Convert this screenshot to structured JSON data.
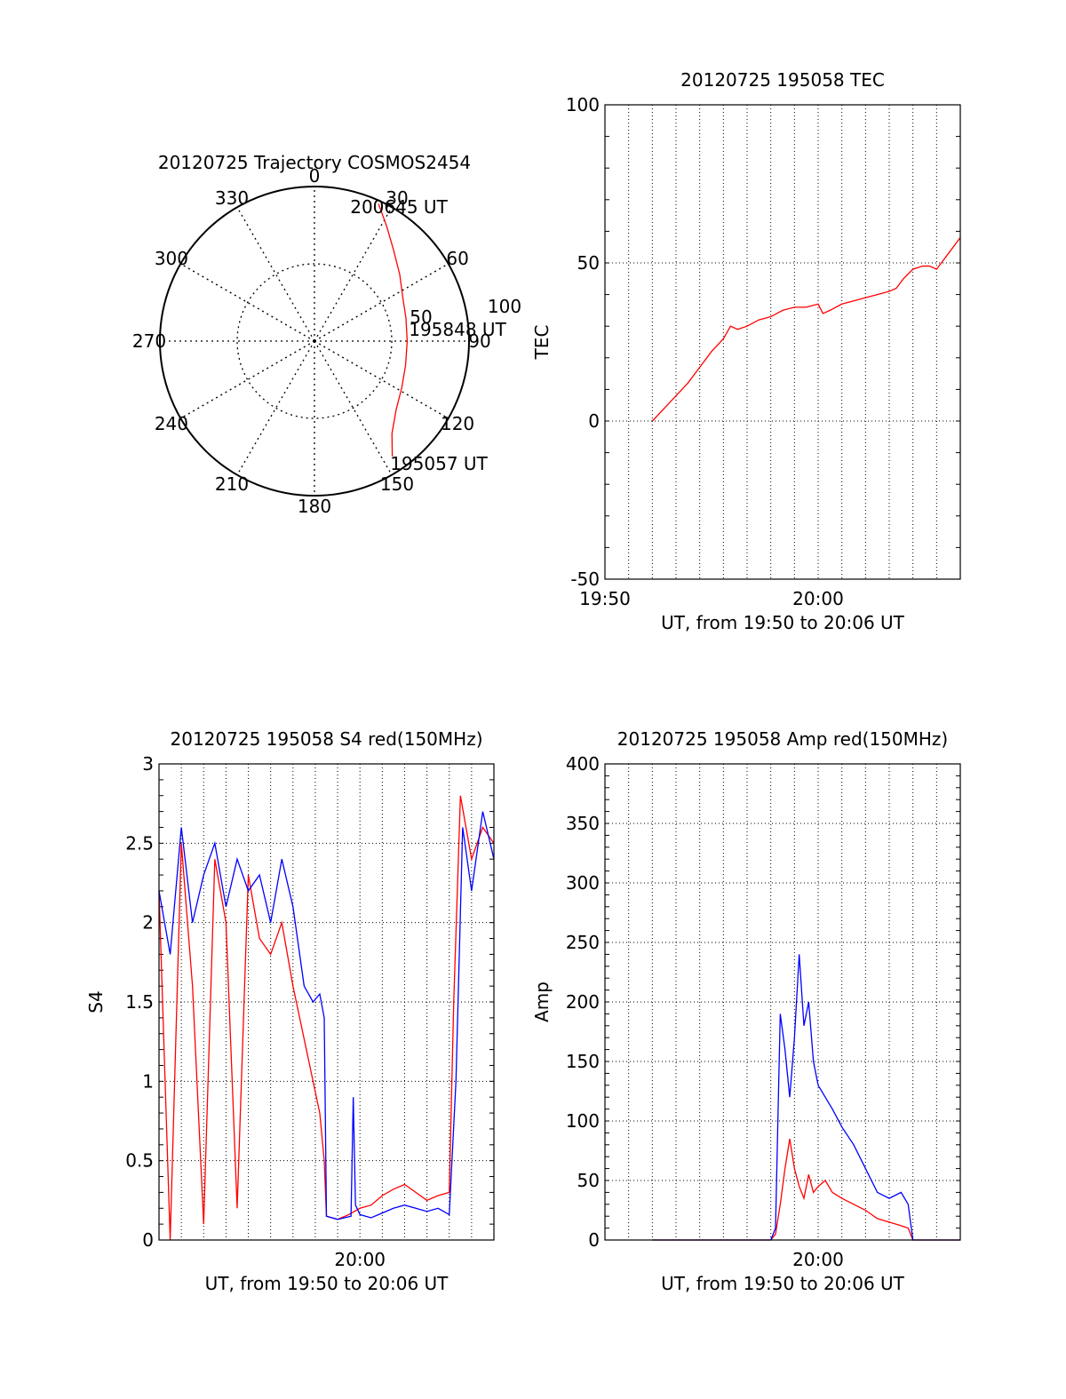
{
  "chart_data": [
    {
      "id": "trajectory",
      "type": "polar",
      "title": "20120725 Trajectory COSMOS2454",
      "angle_labels": [
        "0",
        "30",
        "60",
        "90",
        "120",
        "150",
        "180",
        "210",
        "240",
        "270",
        "300",
        "330"
      ],
      "radial_labels": [
        "50",
        "100"
      ],
      "rmax": 100,
      "grid": true,
      "start_label": "195057 UT",
      "mid_label": "195848 UT",
      "end_label": "200645 UT",
      "series": [
        {
          "color": "#ff0000",
          "azimuth": [
            146,
            140,
            130,
            118,
            105,
            90,
            76,
            63,
            52,
            41,
            32,
            25
          ],
          "radius": [
            90,
            78,
            69,
            64,
            61,
            60,
            61,
            64,
            70,
            78,
            88,
            98
          ]
        }
      ]
    },
    {
      "id": "tec",
      "type": "line",
      "title": "20120725 195058 TEC",
      "ylabel": "TEC",
      "xlabel": "UT, from 19:50 to 20:06 UT",
      "xlim": [
        0,
        15
      ],
      "ylim": [
        -50,
        100
      ],
      "xticks": [
        {
          "x": 0,
          "label": "19:50"
        },
        {
          "x": 9,
          "label": "20:00"
        }
      ],
      "yticks": [
        -50,
        0,
        50,
        100
      ],
      "grid": true,
      "series": [
        {
          "color": "#ff0000",
          "x": [
            2.0,
            2.5,
            3.0,
            3.5,
            4.0,
            4.5,
            5.0,
            5.3,
            5.6,
            6.0,
            6.5,
            7.0,
            7.5,
            8.0,
            8.5,
            9.0,
            9.2,
            9.5,
            10.0,
            10.5,
            11.0,
            11.5,
            12.0,
            12.3,
            12.6,
            13.0,
            13.4,
            13.7,
            14.0,
            14.5,
            15.0
          ],
          "y": [
            0,
            4,
            8,
            12,
            17,
            22,
            26,
            30,
            29,
            30,
            32,
            33,
            35,
            36,
            36,
            37,
            34,
            35,
            37,
            38,
            39,
            40,
            41,
            42,
            45,
            48,
            49,
            49,
            48,
            53,
            58
          ]
        }
      ]
    },
    {
      "id": "s4",
      "type": "line",
      "title": "20120725 195058 S4 red(150MHz)",
      "ylabel": "S4",
      "xlabel": "UT, from 19:50 to 20:06 UT",
      "xlim": [
        0,
        15
      ],
      "ylim": [
        0,
        3
      ],
      "xticks": [
        {
          "x": 9,
          "label": "20:00"
        }
      ],
      "yticks": [
        0,
        0.5,
        1,
        1.5,
        2,
        2.5,
        3
      ],
      "grid": true,
      "series": [
        {
          "color": "#ff0000",
          "x": [
            0,
            0.5,
            1.0,
            1.5,
            2.0,
            2.5,
            3.0,
            3.5,
            4.0,
            4.5,
            5.0,
            5.5,
            6.0,
            6.3,
            6.6,
            6.9,
            7.2,
            7.4,
            7.5,
            8.0,
            8.5,
            9.0,
            9.5,
            10.0,
            10.5,
            11.0,
            11.5,
            12.0,
            12.5,
            13.0,
            13.2,
            13.5,
            14.0,
            14.5,
            15.0
          ],
          "y": [
            2.2,
            0.0,
            2.5,
            1.6,
            0.1,
            2.4,
            2.0,
            0.2,
            2.3,
            1.9,
            1.8,
            2.0,
            1.6,
            1.4,
            1.2,
            1.0,
            0.8,
            0.5,
            0.15,
            0.13,
            0.16,
            0.2,
            0.22,
            0.28,
            0.32,
            0.35,
            0.3,
            0.25,
            0.28,
            0.3,
            1.5,
            2.8,
            2.4,
            2.6,
            2.5
          ]
        },
        {
          "color": "#0000ff",
          "x": [
            0,
            0.5,
            1.0,
            1.5,
            2.0,
            2.5,
            3.0,
            3.5,
            4.0,
            4.5,
            5.0,
            5.5,
            6.0,
            6.5,
            6.9,
            7.2,
            7.4,
            7.5,
            8.0,
            8.6,
            8.7,
            8.8,
            9.0,
            9.5,
            10.0,
            10.5,
            11.0,
            11.5,
            12.0,
            12.5,
            13.0,
            13.3,
            13.6,
            14.0,
            14.5,
            15.0
          ],
          "y": [
            2.2,
            1.8,
            2.6,
            2.0,
            2.3,
            2.5,
            2.1,
            2.4,
            2.2,
            2.3,
            2.0,
            2.4,
            2.1,
            1.6,
            1.5,
            1.55,
            1.4,
            0.15,
            0.13,
            0.15,
            0.9,
            0.22,
            0.16,
            0.14,
            0.17,
            0.2,
            0.22,
            0.2,
            0.18,
            0.2,
            0.16,
            1.0,
            2.6,
            2.2,
            2.7,
            2.4
          ]
        }
      ]
    },
    {
      "id": "amp",
      "type": "line",
      "title": "20120725 195058 Amp red(150MHz)",
      "ylabel": "Amp",
      "xlabel": "UT, from 19:50 to 20:06 UT",
      "xlim": [
        0,
        15
      ],
      "ylim": [
        0,
        400
      ],
      "xticks": [
        {
          "x": 9,
          "label": "20:00"
        }
      ],
      "yticks": [
        0,
        50,
        100,
        150,
        200,
        250,
        300,
        350,
        400
      ],
      "grid": true,
      "series": [
        {
          "color": "#ff0000",
          "x": [
            2.0,
            4.0,
            6.0,
            7.0,
            7.2,
            7.4,
            7.6,
            7.8,
            8.0,
            8.2,
            8.4,
            8.6,
            8.8,
            9.0,
            9.3,
            9.6,
            10.0,
            10.5,
            11.0,
            11.5,
            12.0,
            12.5,
            12.8,
            13.0,
            15.0
          ],
          "y": [
            0,
            0,
            0,
            0,
            5,
            30,
            60,
            85,
            60,
            45,
            35,
            55,
            40,
            45,
            50,
            40,
            35,
            30,
            25,
            18,
            15,
            12,
            10,
            0,
            0
          ]
        },
        {
          "color": "#0000ff",
          "x": [
            2.0,
            4.0,
            6.0,
            7.0,
            7.2,
            7.4,
            7.6,
            7.8,
            8.0,
            8.2,
            8.4,
            8.6,
            8.8,
            9.0,
            9.3,
            9.6,
            10.0,
            10.5,
            11.0,
            11.5,
            12.0,
            12.5,
            12.8,
            13.0,
            15.0
          ],
          "y": [
            0,
            0,
            0,
            0,
            10,
            190,
            160,
            120,
            170,
            240,
            180,
            200,
            150,
            130,
            120,
            110,
            95,
            80,
            60,
            40,
            35,
            40,
            30,
            0,
            0
          ]
        }
      ]
    }
  ]
}
